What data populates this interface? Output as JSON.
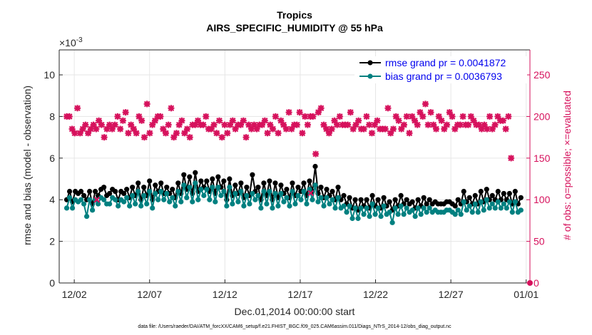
{
  "chart_data": {
    "type": "line",
    "title": "Tropics",
    "subtitle": "AIRS_SPECIFIC_HUMIDITY @ 55 hPa",
    "xlabel": "Dec.01,2014 00:00:00 start",
    "ylabel": "rmse and bias (model - observation)",
    "ylabel_right": "# of obs: o=possible; ×=evaluated",
    "y_exponent_label": "×10",
    "y_exponent_power": "-3",
    "footnote": "data file: /Users/raeder/DAI/ATM_forcXX/CAM6_setup/f.e21.FHIST_BGC.f09_025.CAM6assim.011/Diags_NTrS_2014-12/obs_diag_output.nc",
    "xlim": [
      0,
      31.25
    ],
    "ylim": [
      0,
      11.2
    ],
    "ylim_right": [
      0,
      280
    ],
    "x_tick_positions": [
      1,
      6,
      11,
      16,
      21,
      26,
      31
    ],
    "x_tick_labels": [
      "12/02",
      "12/07",
      "12/12",
      "12/17",
      "12/22",
      "12/27",
      "01/01"
    ],
    "y_ticks": [
      0,
      2,
      4,
      6,
      8,
      10
    ],
    "y_tick_labels": [
      "0",
      "2",
      "4",
      "6",
      "8",
      "10"
    ],
    "y_right_ticks": [
      0,
      50,
      100,
      150,
      200,
      250
    ],
    "y_right_tick_labels": [
      "0",
      "50",
      "100",
      "150",
      "200",
      "250"
    ],
    "legend_position": "top-right",
    "colors": {
      "rmse": "#000000",
      "bias": "#008080",
      "obs": "#d6115c",
      "legend_text": "#0000ee"
    },
    "series": [
      {
        "name": "rmse grand pr = 0.0041872",
        "axis": "left",
        "values": [
          4.0,
          4.4,
          3.9,
          4.4,
          4.3,
          4.4,
          4.2,
          4.0,
          4.4,
          3.8,
          4.4,
          4.2,
          4.5,
          4.6,
          4.2,
          4.3,
          4.5,
          4.4,
          4.0,
          4.4,
          4.3,
          4.5,
          4.1,
          4.6,
          4.2,
          4.8,
          4.0,
          4.6,
          4.2,
          4.9,
          4.0,
          4.7,
          4.4,
          4.8,
          4.3,
          4.6,
          4.3,
          4.5,
          4.1,
          4.8,
          4.3,
          5.2,
          4.5,
          5.1,
          4.3,
          5.3,
          4.4,
          4.9,
          4.6,
          4.9,
          4.4,
          5.0,
          4.3,
          5.1,
          4.6,
          4.9,
          4.0,
          5.0,
          4.2,
          4.7,
          4.3,
          4.8,
          4.1,
          4.6,
          4.2,
          5.2,
          4.4,
          4.6,
          4.0,
          4.8,
          4.2,
          4.9,
          4.0,
          4.8,
          4.1,
          4.7,
          4.3,
          4.5,
          4.1,
          4.8,
          4.2,
          4.6,
          4.4,
          4.8,
          4.2,
          4.9,
          4.4,
          5.6,
          4.3,
          4.6,
          4.1,
          4.5,
          4.2,
          4.4,
          4.0,
          4.6,
          4.0,
          4.2,
          3.8,
          4.1,
          3.6,
          4.0,
          3.5,
          4.0,
          3.7,
          4.0,
          3.6,
          4.2,
          3.7,
          4.0,
          3.6,
          4.1,
          3.7,
          3.9,
          3.5,
          4.0,
          3.7,
          4.2,
          3.8,
          4.0,
          3.8,
          3.9,
          3.6,
          4.0,
          3.7,
          4.1,
          3.8,
          4.0,
          3.8,
          3.9,
          3.8,
          3.8,
          3.8,
          3.9,
          3.9,
          3.8,
          3.7,
          4.0,
          3.8,
          4.4,
          3.9,
          4.1,
          3.8,
          4.2,
          3.8,
          4.4,
          3.9,
          4.5,
          4.0,
          4.2,
          4.0,
          4.4,
          4.0,
          4.3,
          4.0,
          4.3,
          3.8,
          4.4,
          3.8,
          4.1
        ]
      },
      {
        "name": "bias grand pr = 0.0036793",
        "axis": "left",
        "values": [
          3.6,
          4.1,
          3.6,
          4.0,
          3.9,
          4.0,
          3.8,
          3.2,
          4.0,
          3.5,
          4.0,
          3.8,
          4.1,
          4.0,
          3.8,
          3.8,
          4.1,
          4.0,
          3.7,
          4.0,
          3.9,
          4.1,
          3.7,
          4.2,
          3.8,
          4.4,
          3.7,
          4.2,
          3.8,
          4.4,
          3.6,
          4.3,
          4.0,
          4.4,
          4.0,
          4.3,
          3.9,
          4.1,
          3.7,
          4.4,
          3.9,
          4.7,
          4.1,
          4.6,
          3.9,
          4.8,
          4.0,
          4.5,
          4.2,
          4.5,
          4.0,
          4.6,
          3.9,
          4.6,
          4.2,
          4.4,
          3.7,
          4.6,
          3.8,
          4.3,
          3.9,
          4.4,
          3.7,
          4.2,
          3.8,
          4.3,
          4.0,
          4.2,
          3.6,
          4.4,
          3.8,
          4.4,
          3.6,
          4.3,
          3.7,
          4.3,
          3.9,
          4.1,
          3.7,
          4.4,
          3.8,
          4.2,
          4.0,
          4.4,
          3.8,
          4.5,
          4.0,
          4.7,
          3.9,
          4.1,
          3.7,
          4.1,
          3.8,
          4.0,
          3.6,
          4.1,
          3.6,
          3.7,
          3.4,
          3.7,
          3.1,
          3.6,
          3.1,
          3.6,
          3.3,
          3.6,
          3.2,
          3.8,
          3.3,
          3.6,
          3.2,
          3.7,
          3.3,
          3.4,
          2.9,
          3.6,
          3.3,
          3.7,
          3.3,
          3.6,
          3.4,
          3.5,
          3.2,
          3.6,
          3.3,
          3.6,
          3.4,
          3.6,
          3.4,
          3.5,
          3.4,
          3.4,
          3.4,
          3.5,
          3.5,
          3.4,
          3.3,
          3.5,
          3.3,
          3.9,
          3.5,
          3.7,
          3.4,
          3.8,
          3.4,
          3.9,
          3.5,
          4.0,
          3.6,
          3.8,
          3.6,
          3.9,
          3.6,
          3.8,
          3.6,
          3.9,
          3.4,
          3.9,
          3.4,
          3.5
        ]
      },
      {
        "name": "# of obs evaluated",
        "axis": "right",
        "values": [
          200,
          200,
          185,
          180,
          210,
          180,
          185,
          190,
          180,
          185,
          190,
          185,
          195,
          190,
          175,
          185,
          190,
          185,
          190,
          200,
          185,
          195,
          205,
          180,
          190,
          185,
          180,
          200,
          195,
          175,
          215,
          180,
          190,
          195,
          200,
          200,
          185,
          180,
          190,
          210,
          175,
          180,
          190,
          195,
          180,
          185,
          175,
          190,
          190,
          195,
          190,
          190,
          200,
          185,
          185,
          190,
          180,
          195,
          175,
          190,
          180,
          190,
          195,
          185,
          190,
          190,
          195,
          175,
          190,
          185,
          190,
          185,
          190,
          190,
          195,
          180,
          190,
          185,
          200,
          180,
          195,
          190,
          185,
          205,
          185,
          190,
          190,
          205,
          180,
          200,
          190,
          200,
          200,
          155,
          205,
          210,
          190,
          185,
          180,
          185,
          195,
          190,
          200,
          190,
          190,
          190,
          205,
          185,
          190,
          195,
          185,
          185,
          200,
          190,
          180,
          190,
          195,
          185,
          185,
          185,
          210,
          180,
          185,
          200,
          195,
          185,
          190,
          200,
          180,
          200,
          195,
          190,
          205,
          200,
          215,
          190,
          205,
          190,
          185,
          200,
          195,
          185,
          190,
          205,
          200,
          185,
          190,
          190,
          200,
          190,
          190,
          200,
          195,
          190,
          190,
          185,
          190,
          185,
          200,
          185,
          190,
          200,
          195,
          195,
          185,
          200,
          150
        ]
      },
      {
        "name": "# of obs possible",
        "axis": "right",
        "values": [
          0
        ]
      }
    ]
  }
}
